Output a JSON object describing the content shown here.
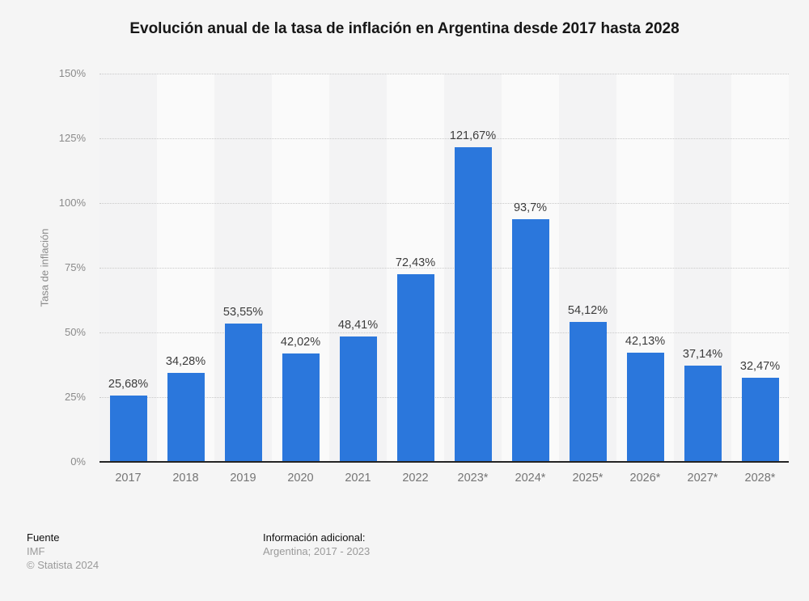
{
  "title": "Evolución anual de la tasa de inflación en Argentina desde 2017 hasta 2028",
  "chart_data": {
    "type": "bar",
    "title": "Evolución anual de la tasa de inflación en Argentina desde 2017 hasta 2028",
    "categories": [
      "2017",
      "2018",
      "2019",
      "2020",
      "2021",
      "2022",
      "2023*",
      "2024*",
      "2025*",
      "2026*",
      "2027*",
      "2028*"
    ],
    "values": [
      25.68,
      34.28,
      53.55,
      42.02,
      48.41,
      72.43,
      121.67,
      93.7,
      54.12,
      42.13,
      37.14,
      32.47
    ],
    "value_labels": [
      "25,68%",
      "34,28%",
      "53,55%",
      "42,02%",
      "48,41%",
      "72,43%",
      "121,67%",
      "93,7%",
      "54,12%",
      "42,13%",
      "37,14%",
      "32,47%"
    ],
    "xlabel": "",
    "ylabel": "Tasa de inflación",
    "ylim": [
      0,
      150
    ],
    "yticks": [
      0,
      25,
      50,
      75,
      100,
      125,
      150
    ],
    "ytick_labels": [
      "0%",
      "25%",
      "50%",
      "75%",
      "100%",
      "125%",
      "150%"
    ],
    "grid": "horizontal-dotted",
    "legend": "none",
    "bar_color": "#2b77dc",
    "band_colors": [
      "#f3f3f4",
      "#fafafa"
    ],
    "gridline_color": "#c9c9c9",
    "axis_line_color": "#242424"
  },
  "footer": {
    "source_label": "Fuente",
    "source_value": "IMF",
    "copyright": "© Statista 2024",
    "info_label": "Información adicional:",
    "info_value": "Argentina; 2017 - 2023"
  }
}
